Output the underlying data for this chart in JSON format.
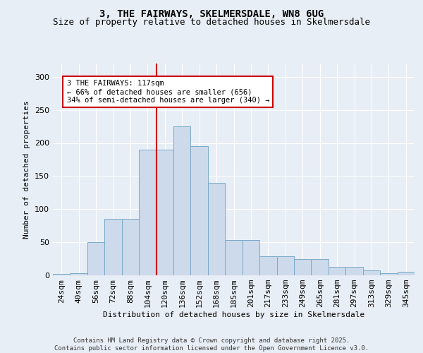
{
  "title1": "3, THE FAIRWAYS, SKELMERSDALE, WN8 6UG",
  "title2": "Size of property relative to detached houses in Skelmersdale",
  "xlabel": "Distribution of detached houses by size in Skelmersdale",
  "ylabel": "Number of detached properties",
  "bar_labels": [
    "24sqm",
    "40sqm",
    "56sqm",
    "72sqm",
    "88sqm",
    "104sqm",
    "120sqm",
    "136sqm",
    "152sqm",
    "168sqm",
    "185sqm",
    "201sqm",
    "217sqm",
    "233sqm",
    "249sqm",
    "265sqm",
    "281sqm",
    "297sqm",
    "313sqm",
    "329sqm",
    "345sqm"
  ],
  "hist_values": [
    2,
    3,
    50,
    85,
    85,
    190,
    190,
    225,
    195,
    140,
    53,
    53,
    29,
    29,
    25,
    25,
    13,
    13,
    7,
    3,
    5
  ],
  "bar_color": "#ccdaeb",
  "bar_edge_color": "#7aaac8",
  "vline_color": "#cc0000",
  "vline_x_idx": 6,
  "annotation_text": "3 THE FAIRWAYS: 117sqm\n← 66% of detached houses are smaller (656)\n34% of semi-detached houses are larger (340) →",
  "annotation_box_facecolor": "#ffffff",
  "annotation_border_color": "#cc0000",
  "footer_text": "Contains HM Land Registry data © Crown copyright and database right 2025.\nContains public sector information licensed under the Open Government Licence v3.0.",
  "ylim": [
    0,
    320
  ],
  "yticks": [
    0,
    50,
    100,
    150,
    200,
    250,
    300
  ],
  "background_color": "#e8eef5",
  "plot_bg_color": "#e8eef5",
  "title1_fontsize": 10,
  "title2_fontsize": 9,
  "ylabel_fontsize": 8,
  "xlabel_fontsize": 8,
  "tick_fontsize": 8,
  "annot_fontsize": 7.5,
  "footer_fontsize": 6.5
}
